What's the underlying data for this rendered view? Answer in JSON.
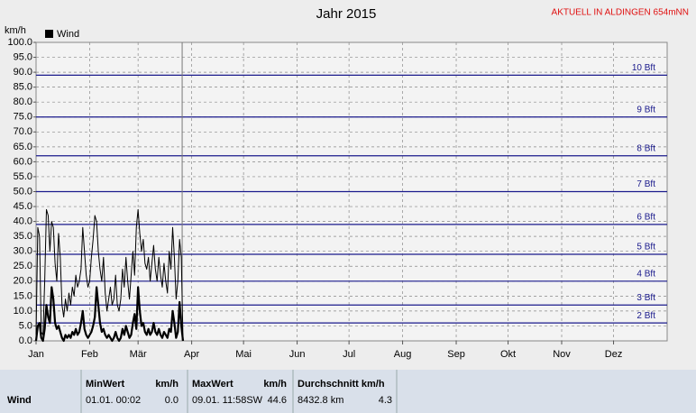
{
  "chart_data": {
    "type": "line",
    "title": "Jahr 2015",
    "y_label": "km/h",
    "x": [
      0,
      1,
      2,
      3,
      4,
      5,
      6,
      7,
      8,
      9,
      10,
      11,
      12,
      13,
      14,
      15,
      16,
      17,
      18,
      19,
      20,
      21,
      22,
      23,
      24,
      25,
      26,
      27,
      28,
      29,
      30,
      31,
      32,
      33,
      34,
      35,
      36,
      37,
      38,
      39,
      40,
      41,
      42,
      43,
      44,
      45,
      46,
      47,
      48,
      49,
      50,
      51,
      52,
      53,
      54,
      55,
      56,
      57,
      58,
      59,
      60,
      61,
      62,
      63,
      64,
      65,
      66,
      67,
      68,
      69,
      70,
      71,
      72,
      73,
      74,
      75,
      76,
      77,
      78,
      79,
      80,
      81,
      82,
      83,
      84,
      85
    ],
    "series": [
      {
        "name": "Wind",
        "color": "#000000",
        "width": 2.2,
        "values": [
          0,
          5,
          6,
          1,
          0,
          4,
          12,
          8,
          6,
          18,
          14,
          6,
          4,
          5,
          3,
          1,
          0,
          2,
          1,
          2,
          1,
          3,
          2,
          4,
          2,
          3,
          6,
          10,
          4,
          2,
          1,
          2,
          3,
          5,
          8,
          18,
          12,
          6,
          3,
          4,
          2,
          1,
          2,
          1,
          0,
          1,
          3,
          1,
          0,
          1,
          4,
          2,
          5,
          3,
          1,
          2,
          6,
          9,
          4,
          18,
          10,
          5,
          6,
          3,
          2,
          4,
          2,
          3,
          6,
          3,
          2,
          4,
          2,
          1,
          3,
          2,
          1,
          4,
          3,
          10,
          6,
          1,
          3,
          13,
          5,
          0
        ]
      },
      {
        "color": "#000000",
        "width": 1,
        "values": [
          2,
          38,
          35,
          3,
          2,
          20,
          44,
          42,
          30,
          40,
          38,
          26,
          20,
          36,
          28,
          12,
          8,
          14,
          10,
          16,
          12,
          18,
          15,
          22,
          18,
          20,
          24,
          38,
          30,
          22,
          18,
          20,
          28,
          34,
          42,
          40,
          30,
          24,
          20,
          28,
          16,
          10,
          14,
          18,
          12,
          14,
          22,
          12,
          10,
          14,
          24,
          18,
          28,
          20,
          14,
          22,
          30,
          22,
          38,
          44,
          36,
          30,
          34,
          26,
          24,
          28,
          20,
          26,
          32,
          24,
          20,
          28,
          22,
          18,
          26,
          20,
          16,
          30,
          24,
          38,
          28,
          14,
          20,
          34,
          28,
          0
        ]
      }
    ],
    "xlim": [
      0,
      365
    ],
    "xticks": [
      {
        "value": 0,
        "label": "Jan"
      },
      {
        "value": 31,
        "label": "Feb"
      },
      {
        "value": 59,
        "label": "Mär"
      },
      {
        "value": 90,
        "label": "Apr"
      },
      {
        "value": 120,
        "label": "Mai"
      },
      {
        "value": 151,
        "label": "Jun"
      },
      {
        "value": 181,
        "label": "Jul"
      },
      {
        "value": 212,
        "label": "Aug"
      },
      {
        "value": 243,
        "label": "Sep"
      },
      {
        "value": 273,
        "label": "Okt"
      },
      {
        "value": 304,
        "label": "Nov"
      },
      {
        "value": 334,
        "label": "Dez"
      }
    ],
    "ylim": [
      0,
      100
    ],
    "yticks": [
      {
        "value": 0,
        "label": "0.0"
      },
      {
        "value": 5,
        "label": "5.0"
      },
      {
        "value": 10,
        "label": "10.0"
      },
      {
        "value": 15,
        "label": "15.0"
      },
      {
        "value": 20,
        "label": "20.0"
      },
      {
        "value": 25,
        "label": "25.0"
      },
      {
        "value": 30,
        "label": "30.0"
      },
      {
        "value": 35,
        "label": "35.0"
      },
      {
        "value": 40,
        "label": "40.0"
      },
      {
        "value": 45,
        "label": "45.0"
      },
      {
        "value": 50,
        "label": "50.0"
      },
      {
        "value": 55,
        "label": "55.0"
      },
      {
        "value": 60,
        "label": "60.0"
      },
      {
        "value": 65,
        "label": "65.0"
      },
      {
        "value": 70,
        "label": "70.0"
      },
      {
        "value": 75,
        "label": "75.0"
      },
      {
        "value": 80,
        "label": "80.0"
      },
      {
        "value": 85,
        "label": "85.0"
      },
      {
        "value": 90,
        "label": "90.0"
      },
      {
        "value": 95,
        "label": "95.0"
      },
      {
        "value": 100,
        "label": "100.0"
      }
    ],
    "grid": true,
    "reference_lines": [
      {
        "value": 6,
        "label": "2 Bft"
      },
      {
        "value": 12,
        "label": "3 Bft"
      },
      {
        "value": 20,
        "label": "4 Bft"
      },
      {
        "value": 29,
        "label": "5 Bft"
      },
      {
        "value": 39,
        "label": "6 Bft"
      },
      {
        "value": 50,
        "label": "7 Bft"
      },
      {
        "value": 62,
        "label": "8 Bft"
      },
      {
        "value": 75,
        "label": "9 Bft"
      },
      {
        "value": 89,
        "label": "10 Bft"
      }
    ],
    "reference_color": "#1a1a8c",
    "marker_x": 84.5
  },
  "header": {
    "notice": "AKTUELL IN ALDINGEN 654mNN"
  },
  "stats_table": {
    "row_label": "Wind",
    "columns": [
      {
        "header": "MinWert",
        "unit": "km/h",
        "when": "01.01.  00:02",
        "value": "0.0"
      },
      {
        "header": "MaxWert",
        "unit": "km/h",
        "when": "09.01. 11:58SW",
        "value": "44.6"
      },
      {
        "header": "Durchschnitt km/h",
        "when": "8432.8 km",
        "value": "4.3"
      }
    ]
  }
}
